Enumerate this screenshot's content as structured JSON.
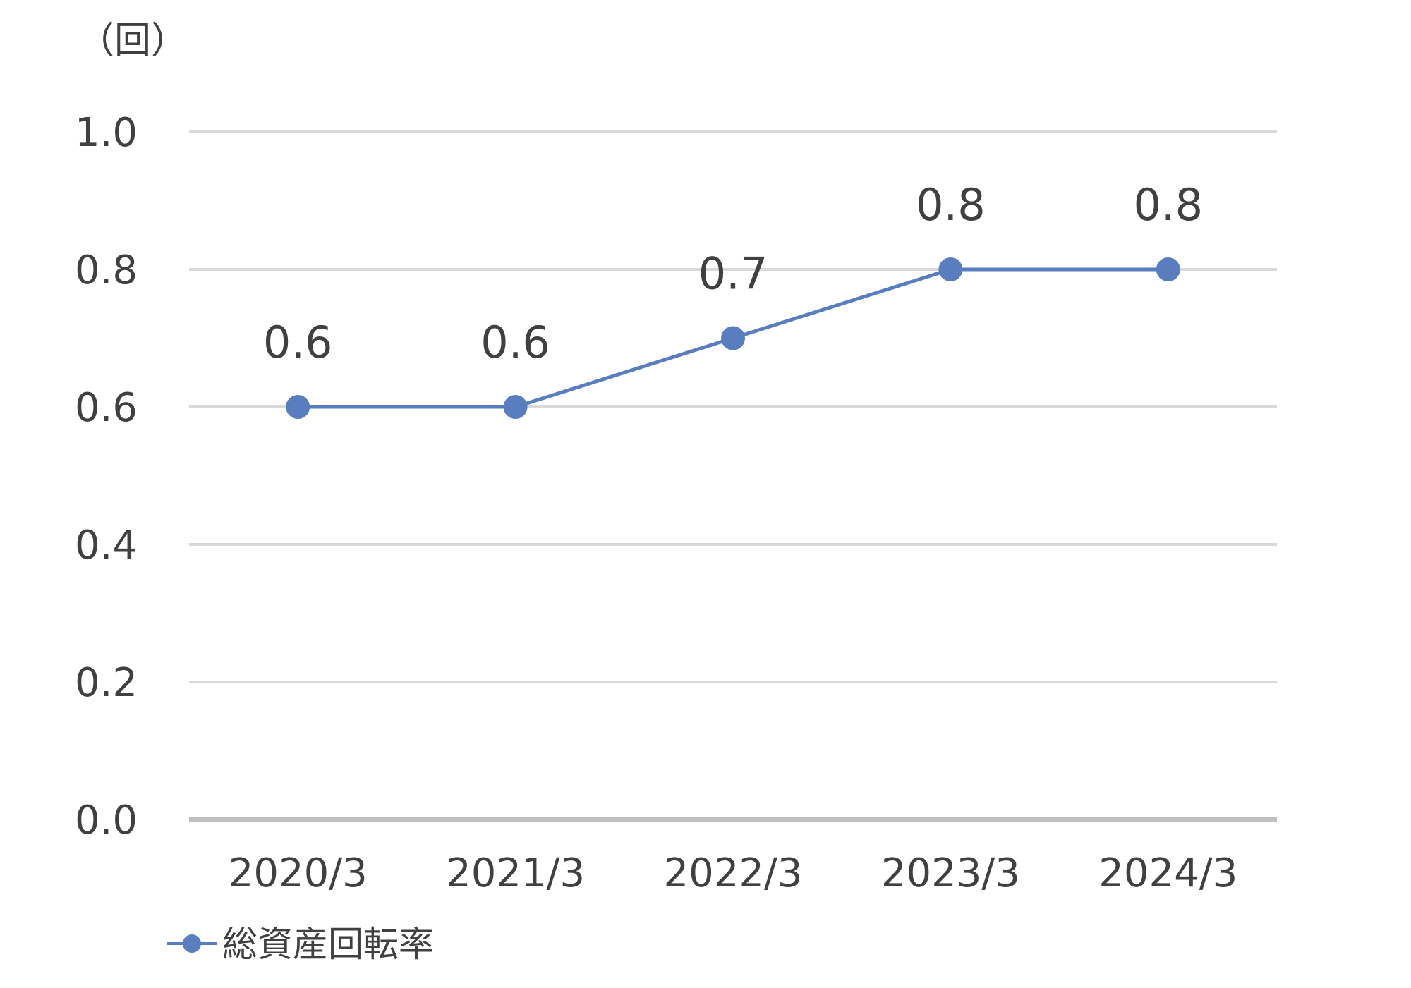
{
  "chart_data": {
    "type": "line",
    "unit_label": "（回）",
    "categories": [
      "2020/3",
      "2021/3",
      "2022/3",
      "2023/3",
      "2024/3"
    ],
    "series": [
      {
        "name": "総資産回転率",
        "values": [
          0.6,
          0.6,
          0.7,
          0.8,
          0.8
        ],
        "color": "#5a7dbf"
      }
    ],
    "data_labels": [
      "0.6",
      "0.6",
      "0.7",
      "0.8",
      "0.8"
    ],
    "y_ticks": [
      "0.0",
      "0.2",
      "0.4",
      "0.6",
      "0.8",
      "1.0"
    ],
    "ylim": [
      0,
      1.0
    ],
    "grid": true,
    "gridline_color": "#d9d9d9",
    "baseline_color": "#bfbfbf",
    "text_color": "#404040",
    "legend_position": "bottom-left"
  }
}
